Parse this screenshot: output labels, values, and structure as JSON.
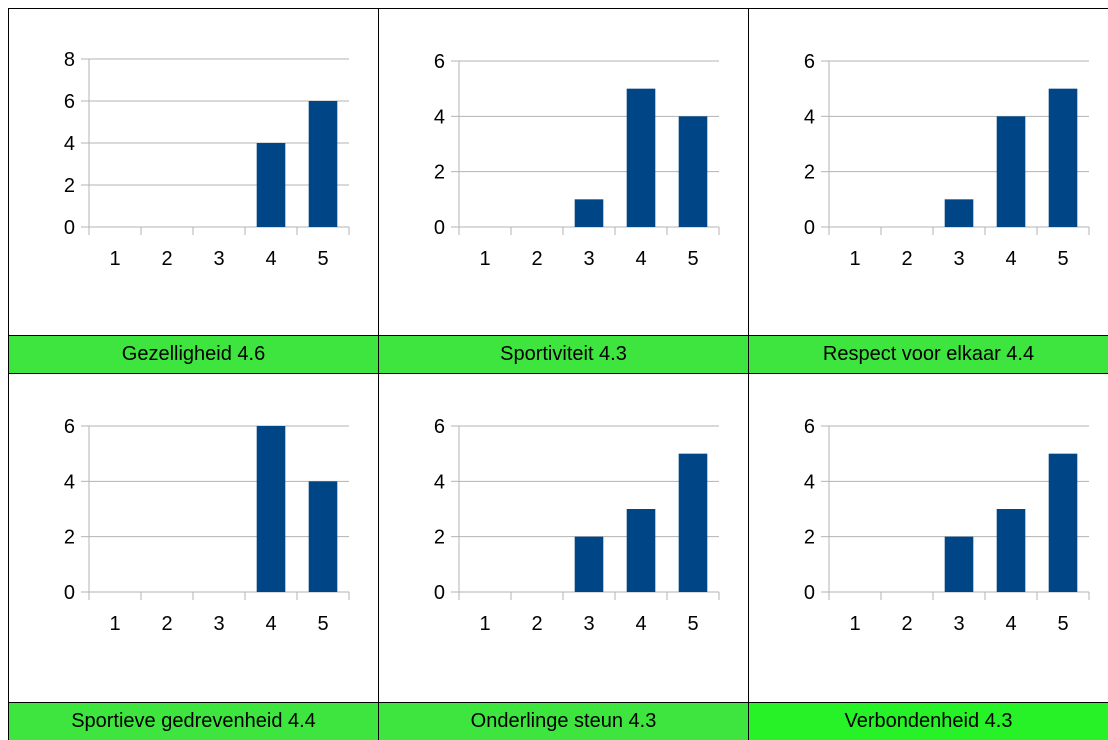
{
  "chart_data": [
    {
      "type": "bar",
      "categories": [
        "1",
        "2",
        "3",
        "4",
        "5"
      ],
      "values": [
        0,
        0,
        0,
        4,
        6
      ],
      "ylim": [
        0,
        8
      ],
      "yticks": [
        0,
        2,
        4,
        6,
        8
      ],
      "title": "Gezelligheid 4.6"
    },
    {
      "type": "bar",
      "categories": [
        "1",
        "2",
        "3",
        "4",
        "5"
      ],
      "values": [
        0,
        0,
        1,
        5,
        4
      ],
      "ylim": [
        0,
        6
      ],
      "yticks": [
        0,
        2,
        4,
        6
      ],
      "title": "Sportiviteit 4.3"
    },
    {
      "type": "bar",
      "categories": [
        "1",
        "2",
        "3",
        "4",
        "5"
      ],
      "values": [
        0,
        0,
        1,
        4,
        5
      ],
      "ylim": [
        0,
        6
      ],
      "yticks": [
        0,
        2,
        4,
        6
      ],
      "title": "Respect voor elkaar 4.4"
    },
    {
      "type": "bar",
      "categories": [
        "1",
        "2",
        "3",
        "4",
        "5"
      ],
      "values": [
        0,
        0,
        0,
        6,
        4
      ],
      "ylim": [
        0,
        6
      ],
      "yticks": [
        0,
        2,
        4,
        6
      ],
      "title": "Sportieve gedrevenheid 4.4"
    },
    {
      "type": "bar",
      "categories": [
        "1",
        "2",
        "3",
        "4",
        "5"
      ],
      "values": [
        0,
        0,
        2,
        3,
        5
      ],
      "ylim": [
        0,
        6
      ],
      "yticks": [
        0,
        2,
        4,
        6
      ],
      "title": "Onderlinge steun 4.3"
    },
    {
      "type": "bar",
      "categories": [
        "1",
        "2",
        "3",
        "4",
        "5"
      ],
      "values": [
        0,
        0,
        2,
        3,
        5
      ],
      "ylim": [
        0,
        6
      ],
      "yticks": [
        0,
        2,
        4,
        6
      ],
      "title": "Verbondenheid 4.3"
    }
  ],
  "colors": {
    "bar": "#004586",
    "gridline": "#b3b3b3",
    "label_bg": "#3fe53f"
  }
}
